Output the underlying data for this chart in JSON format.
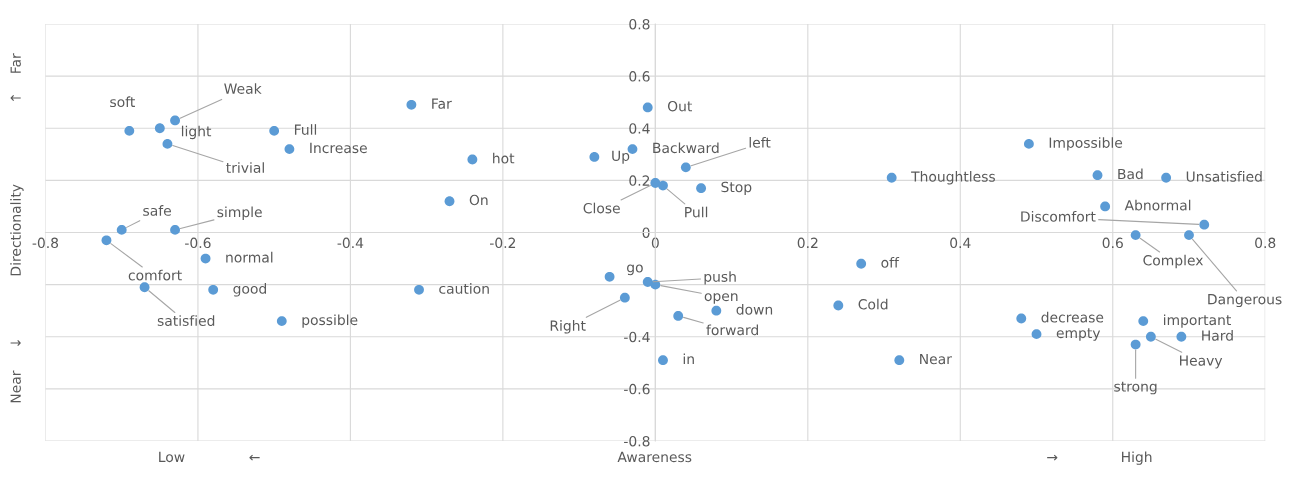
{
  "chart_data": {
    "type": "scatter",
    "xlabel": "Awareness",
    "ylabel": "Directionality",
    "xlim": [
      -0.8,
      0.8
    ],
    "xticks": [
      -0.8,
      -0.6,
      -0.4,
      -0.2,
      0,
      0.2,
      0.4,
      0.6,
      0.8
    ],
    "ylim": [
      -0.8,
      0.8
    ],
    "yticks": [
      -0.8,
      -0.6,
      -0.4,
      {
        "value": -0.2,
        "label": null
      },
      0,
      0.2,
      0.4,
      0.6,
      0.8
    ],
    "grid": true,
    "marker": "circle",
    "x": [
      -0.69,
      -0.65,
      -0.63,
      -0.64,
      -0.5,
      -0.48,
      -0.32,
      -0.24,
      -0.27,
      -0.08,
      -0.03,
      -0.01,
      0.04,
      0.0,
      0.01,
      0.06,
      0.31,
      0.49,
      0.58,
      0.67,
      0.59,
      0.72,
      0.63,
      0.7,
      -0.7,
      -0.63,
      -0.72,
      -0.59,
      -0.67,
      -0.58,
      -0.49,
      -0.31,
      -0.06,
      -0.01,
      0.0,
      -0.04,
      0.03,
      0.08,
      0.01,
      0.24,
      0.27,
      0.32,
      0.48,
      0.5,
      0.64,
      0.65,
      0.69,
      0.63
    ],
    "series": [
      {
        "color": "#5b9bd5",
        "values": [
          0.39,
          0.4,
          0.43,
          0.34,
          0.39,
          0.32,
          0.49,
          0.28,
          0.12,
          0.29,
          0.32,
          0.48,
          0.25,
          0.19,
          0.18,
          0.17,
          0.21,
          0.34,
          0.22,
          0.21,
          0.1,
          0.03,
          -0.01,
          -0.01,
          0.01,
          0.01,
          -0.03,
          -0.1,
          -0.21,
          -0.22,
          -0.34,
          -0.22,
          -0.17,
          -0.19,
          -0.2,
          -0.25,
          -0.32,
          -0.3,
          -0.49,
          -0.28,
          -0.12,
          -0.49,
          -0.33,
          -0.39,
          -0.34,
          -0.4,
          -0.4,
          -0.43
        ]
      }
    ],
    "annotations": [
      {
        "text": "soft",
        "x": -0.69,
        "y": 0.39
      },
      {
        "text": "light",
        "x": -0.65,
        "y": 0.4
      },
      {
        "text": "Weak",
        "x": -0.63,
        "y": 0.43
      },
      {
        "text": "trivial",
        "x": -0.64,
        "y": 0.34
      },
      {
        "text": "Full",
        "x": -0.5,
        "y": 0.39
      },
      {
        "text": "Increase",
        "x": -0.48,
        "y": 0.32
      },
      {
        "text": "Far",
        "x": -0.32,
        "y": 0.49
      },
      {
        "text": "hot",
        "x": -0.24,
        "y": 0.28
      },
      {
        "text": "On",
        "x": -0.27,
        "y": 0.12
      },
      {
        "text": "Up",
        "x": -0.08,
        "y": 0.29
      },
      {
        "text": "Backward",
        "x": -0.03,
        "y": 0.32
      },
      {
        "text": "Out",
        "x": -0.01,
        "y": 0.48
      },
      {
        "text": "left",
        "x": 0.04,
        "y": 0.25
      },
      {
        "text": "Close",
        "x": 0.0,
        "y": 0.19
      },
      {
        "text": "Pull",
        "x": 0.01,
        "y": 0.18
      },
      {
        "text": "Stop",
        "x": 0.06,
        "y": 0.17
      },
      {
        "text": "Thoughtless",
        "x": 0.31,
        "y": 0.21
      },
      {
        "text": "Impossible",
        "x": 0.49,
        "y": 0.34
      },
      {
        "text": "Bad",
        "x": 0.58,
        "y": 0.22
      },
      {
        "text": "Unsatisfied",
        "x": 0.67,
        "y": 0.21
      },
      {
        "text": "Abnormal",
        "x": 0.59,
        "y": 0.1
      },
      {
        "text": "Discomfort",
        "x": 0.72,
        "y": 0.03
      },
      {
        "text": "Complex",
        "x": 0.63,
        "y": -0.01
      },
      {
        "text": "Dangerous",
        "x": 0.7,
        "y": -0.01
      },
      {
        "text": "safe",
        "x": -0.7,
        "y": 0.01
      },
      {
        "text": "simple",
        "x": -0.63,
        "y": 0.01
      },
      {
        "text": "comfort",
        "x": -0.72,
        "y": -0.03
      },
      {
        "text": "normal",
        "x": -0.59,
        "y": -0.1
      },
      {
        "text": "satisfied",
        "x": -0.67,
        "y": -0.21
      },
      {
        "text": "good",
        "x": -0.58,
        "y": -0.22
      },
      {
        "text": "possible",
        "x": -0.49,
        "y": -0.34
      },
      {
        "text": "caution",
        "x": -0.31,
        "y": -0.22
      },
      {
        "text": "go",
        "x": -0.06,
        "y": -0.17
      },
      {
        "text": "push",
        "x": -0.01,
        "y": -0.19
      },
      {
        "text": "open",
        "x": 0.0,
        "y": -0.2
      },
      {
        "text": "Right",
        "x": -0.04,
        "y": -0.25
      },
      {
        "text": "forward",
        "x": 0.03,
        "y": -0.32
      },
      {
        "text": "down",
        "x": 0.08,
        "y": -0.3
      },
      {
        "text": "in",
        "x": 0.01,
        "y": -0.49
      },
      {
        "text": "Cold",
        "x": 0.24,
        "y": -0.28
      },
      {
        "text": "off",
        "x": 0.27,
        "y": -0.12
      },
      {
        "text": "Near",
        "x": 0.32,
        "y": -0.49
      },
      {
        "text": "decrease",
        "x": 0.48,
        "y": -0.33
      },
      {
        "text": "empty",
        "x": 0.5,
        "y": -0.39
      },
      {
        "text": "important",
        "x": 0.64,
        "y": -0.34
      },
      {
        "text": "Heavy",
        "x": 0.65,
        "y": -0.4
      },
      {
        "text": "Hard",
        "x": 0.69,
        "y": -0.4
      },
      {
        "text": "strong",
        "x": 0.63,
        "y": -0.43
      },
      "Low",
      "←",
      "→",
      "High",
      "Far",
      "↑",
      "↓",
      "Near"
    ]
  }
}
